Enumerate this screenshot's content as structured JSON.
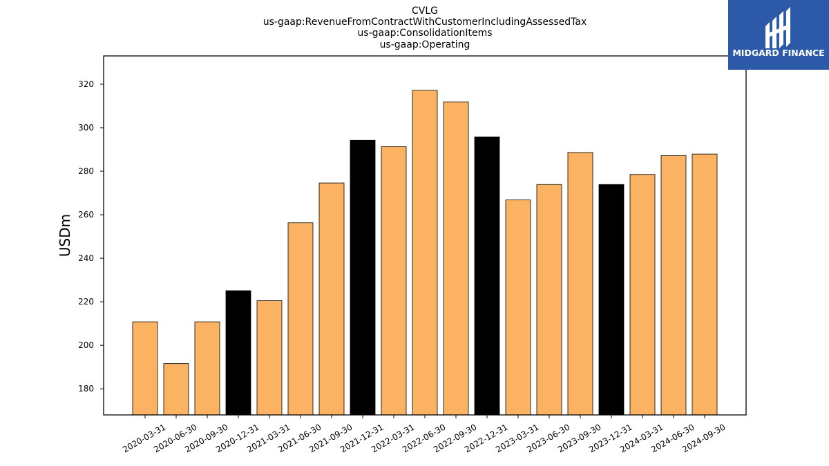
{
  "chart_data": {
    "type": "bar",
    "title_lines": [
      "CVLG",
      "us-gaap:RevenueFromContractWithCustomerIncludingAssessedTax",
      "us-gaap:ConsolidationItems",
      "us-gaap:Operating"
    ],
    "ylabel": "USDm",
    "xlabel": "",
    "ylim": [
      168,
      333
    ],
    "yticks": [
      180,
      200,
      220,
      240,
      260,
      280,
      300,
      320
    ],
    "categories": [
      "2020-03-31",
      "2020-06-30",
      "2020-09-30",
      "2020-12-31",
      "2021-03-31",
      "2021-06-30",
      "2021-09-30",
      "2021-12-31",
      "2022-03-31",
      "2022-06-30",
      "2022-09-30",
      "2022-12-31",
      "2023-03-31",
      "2023-06-30",
      "2023-09-30",
      "2023-12-31",
      "2024-03-31",
      "2024-06-30",
      "2024-09-30"
    ],
    "values": [
      210.8,
      191.6,
      210.8,
      225.1,
      220.5,
      256.3,
      274.6,
      294.2,
      291.3,
      317.2,
      311.8,
      295.8,
      266.8,
      273.9,
      288.6,
      273.9,
      278.5,
      287.2,
      287.9
    ],
    "bar_kind": [
      "quarter",
      "quarter",
      "quarter",
      "year_end",
      "quarter",
      "quarter",
      "quarter",
      "year_end",
      "quarter",
      "quarter",
      "quarter",
      "year_end",
      "quarter",
      "quarter",
      "quarter",
      "year_end",
      "quarter",
      "quarter",
      "quarter"
    ],
    "colors": {
      "quarter": "#fbb262",
      "year_end": "#000000",
      "edge": "#000000"
    },
    "grid": false,
    "legend": "none"
  },
  "logo": {
    "text": "MIDGARD FINANCE",
    "background": "#2d5aa8"
  }
}
